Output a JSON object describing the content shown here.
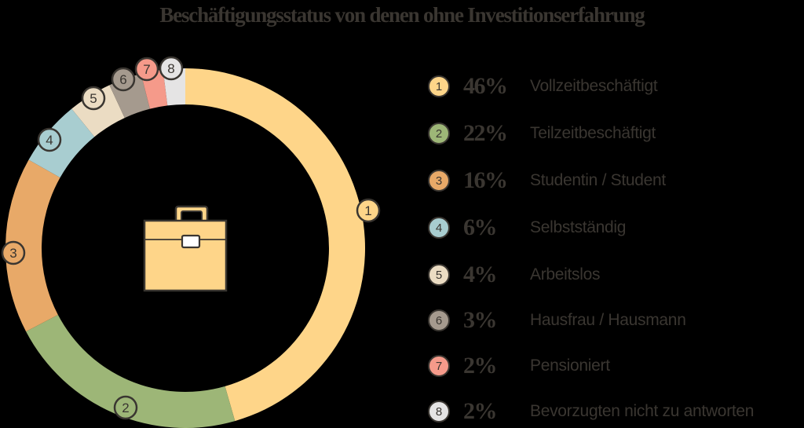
{
  "title": "Beschäftigungsstatus von denen ohne Investitionserfahrung",
  "center_icon": "briefcase-icon",
  "chart_data": {
    "type": "pie",
    "subtype": "donut",
    "title": "Beschäftigungsstatus von denen ohne Investitionserfahrung",
    "categories": [
      "Vollzeitbeschäftigt",
      "Teilzeitbeschäftigt",
      "Studentin / Student",
      "Selbstständig",
      "Arbeitslos",
      "Hausfrau / Hausmann",
      "Pensioniert",
      "Bevorzugten nicht zu antworten"
    ],
    "values": [
      46,
      22,
      16,
      6,
      4,
      3,
      2,
      2
    ],
    "unit": "%",
    "colors": [
      "#fed589",
      "#9db677",
      "#e8a968",
      "#a8cdd0",
      "#ebdcc3",
      "#a59a8e",
      "#f59a8a",
      "#e5e4e4"
    ],
    "legend_position": "right"
  },
  "legend": [
    {
      "num": "1",
      "pct": "46%",
      "label": "Vollzeitbeschäftigt",
      "color": "#fed589"
    },
    {
      "num": "2",
      "pct": "22%",
      "label": "Teilzeitbeschäftigt",
      "color": "#9db677"
    },
    {
      "num": "3",
      "pct": "16%",
      "label": "Studentin / Student",
      "color": "#e8a968"
    },
    {
      "num": "4",
      "pct": "6%",
      "label": "Selbstständig",
      "color": "#a8cdd0"
    },
    {
      "num": "5",
      "pct": "4%",
      "label": "Arbeitslos",
      "color": "#ebdcc3"
    },
    {
      "num": "6",
      "pct": "3%",
      "label": "Hausfrau / Hausmann",
      "color": "#a59a8e"
    },
    {
      "num": "7",
      "pct": "2%",
      "label": "Pensioniert",
      "color": "#f59a8a"
    },
    {
      "num": "8",
      "pct": "2%",
      "label": "Bevorzugten nicht zu antworten",
      "color": "#e5e4e4"
    }
  ],
  "colors": {
    "ink": "#3a3631",
    "background": "#000000"
  }
}
